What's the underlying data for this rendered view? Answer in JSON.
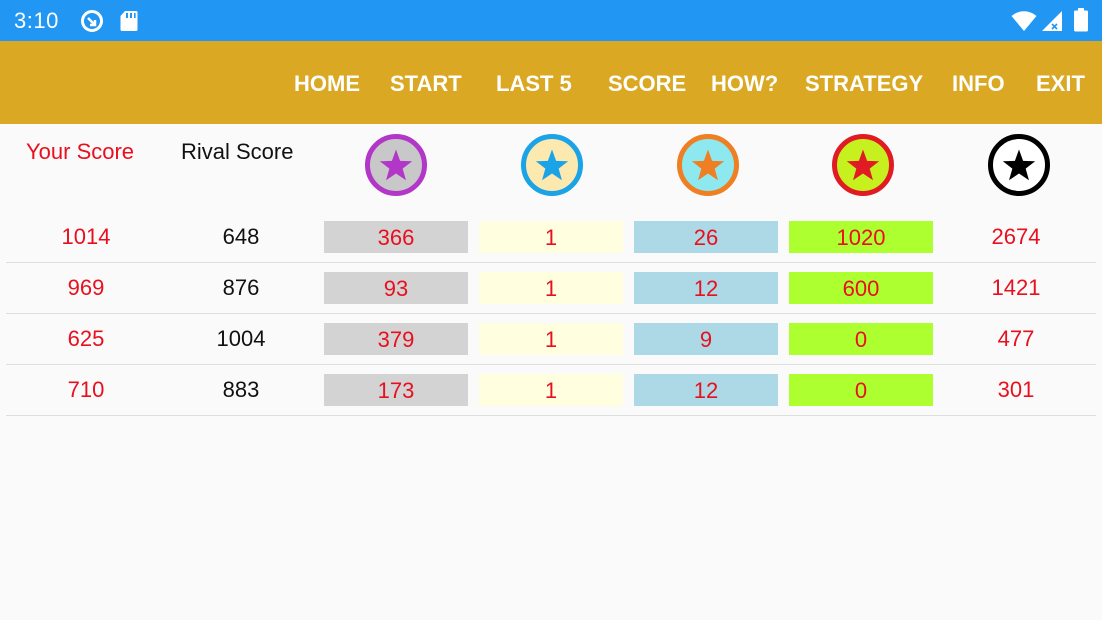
{
  "status_bar": {
    "time": "3:10",
    "icons": [
      "app-notification-icon",
      "sd-card-icon",
      "wifi-icon",
      "signal-icon",
      "battery-icon"
    ]
  },
  "nav": {
    "items": [
      "HOME",
      "START",
      "LAST 5",
      "SCORE",
      "HOW?",
      "STRATEGY",
      "INFO",
      "EXIT"
    ]
  },
  "table": {
    "headers": {
      "your_score": "Your Score",
      "rival_score": "Rival Score"
    },
    "star_columns": [
      {
        "name": "purple-star-icon",
        "ring": "#b236c8",
        "fill": "#c8c8c8",
        "star": "#b236c8",
        "cell_bg": "#d3d3d3"
      },
      {
        "name": "blue-star-icon",
        "ring": "#1ba3e8",
        "fill": "#fbe9b0",
        "star": "#1ba3e8",
        "cell_bg": "#ffffe0"
      },
      {
        "name": "orange-star-icon",
        "ring": "#f07e22",
        "fill": "#8ee8f0",
        "star": "#f07e22",
        "cell_bg": "#add8e6"
      },
      {
        "name": "red-star-icon",
        "ring": "#e01b24",
        "fill": "#c6f01e",
        "star": "#e01b24",
        "cell_bg": "#adff2f"
      },
      {
        "name": "black-star-icon",
        "ring": "#000000",
        "fill": "#ffffff",
        "star": "#000000",
        "cell_bg": "transparent"
      }
    ],
    "rows": [
      {
        "your": "1014",
        "rival": "648",
        "c1": "366",
        "c2": "1",
        "c3": "26",
        "c4": "1020",
        "c5": "2674"
      },
      {
        "your": "969",
        "rival": "876",
        "c1": "93",
        "c2": "1",
        "c3": "12",
        "c4": "600",
        "c5": "1421"
      },
      {
        "your": "625",
        "rival": "1004",
        "c1": "379",
        "c2": "1",
        "c3": "9",
        "c4": "0",
        "c5": "477"
      },
      {
        "your": "710",
        "rival": "883",
        "c1": "173",
        "c2": "1",
        "c3": "12",
        "c4": "0",
        "c5": "301"
      }
    ]
  },
  "colors": {
    "status_bar": "#2196f3",
    "app_bar": "#daa822",
    "your_score_text": "#e8101e"
  }
}
